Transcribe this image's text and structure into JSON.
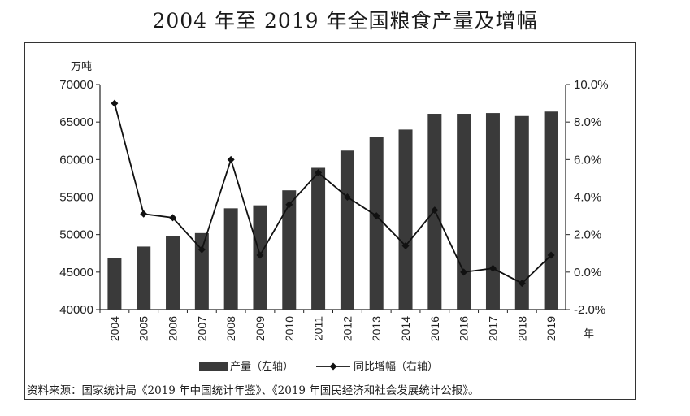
{
  "title": "2004 年至 2019 年全国粮食产量及增幅",
  "source": "资料来源：国家统计局《2019 年中国统计年鉴》、《2019 年国民经济和社会发展统计公报》。",
  "chart_data": {
    "type": "bar",
    "categories": [
      "2004",
      "2005",
      "2006",
      "2007",
      "2008",
      "2009",
      "2010",
      "2011",
      "2012",
      "2013",
      "2014",
      "2016",
      "2016",
      "2017",
      "2018",
      "2019"
    ],
    "left_unit": "万吨",
    "x_unit": "年",
    "ylim_left": [
      40000,
      70000
    ],
    "left_ticks": [
      "70000",
      "65000",
      "60000",
      "55000",
      "50000",
      "45000",
      "40000"
    ],
    "ylim_right": [
      -2.0,
      10.0
    ],
    "right_ticks": [
      "10.0%",
      "8.0%",
      "6.0%",
      "4.0%",
      "2.0%",
      "0.0%",
      "-2.0%"
    ],
    "grid": false,
    "legend_position": "bottom",
    "series": [
      {
        "name": "产量（左轴）",
        "type": "bar",
        "axis": "left",
        "color": "#3a3a3a",
        "values": [
          46900,
          48400,
          49800,
          50200,
          53500,
          53900,
          55900,
          58900,
          61200,
          63000,
          64000,
          66100,
          66100,
          66200,
          65800,
          66400
        ]
      },
      {
        "name": "同比增幅（右轴）",
        "type": "line",
        "axis": "right",
        "color": "#111111",
        "values": [
          9.0,
          3.1,
          2.9,
          1.2,
          6.0,
          0.9,
          3.6,
          5.3,
          4.0,
          3.0,
          1.4,
          3.3,
          0.0,
          0.2,
          -0.6,
          0.9
        ]
      }
    ]
  }
}
